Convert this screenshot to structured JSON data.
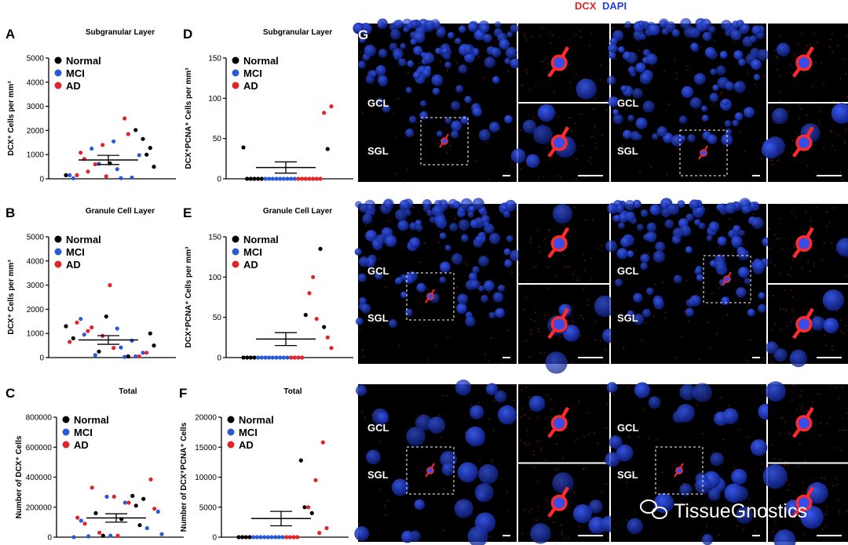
{
  "header": {
    "dcx": "DCX",
    "dapi": "DAPI",
    "dcx_color": "#e0262a",
    "dapi_color": "#2440d8"
  },
  "panel_G_label": "G",
  "region_labels": {
    "gcl": "GCL",
    "sgl": "SGL"
  },
  "watermark": {
    "text": "TissueGnostics",
    "icon": "wechat-icon"
  },
  "legend": [
    {
      "name": "Normal",
      "color": "#000000"
    },
    {
      "name": "MCI",
      "color": "#2a5bd7"
    },
    {
      "name": "AD",
      "color": "#e0262a"
    }
  ],
  "chart_data": [
    {
      "panel": "A",
      "type": "scatter",
      "title": "Subgranular  Layer",
      "ylabel": "DCX⁺ Cells per mm³",
      "ylim": [
        0,
        5000
      ],
      "yticks": [
        "0",
        "1000",
        "2000",
        "3000",
        "4000",
        "5000"
      ],
      "mean": 780,
      "sem": 190,
      "series": [
        {
          "name": "Normal",
          "values": [
            2020,
            1650,
            1280,
            1000,
            640,
            500,
            150
          ]
        },
        {
          "name": "MCI",
          "values": [
            1550,
            1250,
            980,
            620,
            400,
            150,
            50,
            30,
            20
          ]
        },
        {
          "name": "AD",
          "values": [
            2500,
            1850,
            1400,
            1080,
            820,
            600,
            300,
            150,
            100
          ]
        }
      ]
    },
    {
      "panel": "B",
      "type": "scatter",
      "title": "Granule Cell Layer",
      "ylabel": "DCX⁺ Cells per mm³",
      "ylim": [
        0,
        5000
      ],
      "yticks": [
        "0",
        "1000",
        "2000",
        "3000",
        "4000",
        "5000"
      ],
      "mean": 730,
      "sem": 180,
      "series": [
        {
          "name": "Normal",
          "values": [
            1700,
            1300,
            1000,
            800,
            500,
            250,
            50
          ]
        },
        {
          "name": "MCI",
          "values": [
            1600,
            1200,
            950,
            700,
            420,
            200,
            100,
            50,
            30
          ]
        },
        {
          "name": "AD",
          "values": [
            3000,
            1450,
            1250,
            1100,
            900,
            650,
            400,
            200,
            50
          ]
        }
      ]
    },
    {
      "panel": "C",
      "type": "scatter",
      "title": "Total",
      "ylabel": "Number of DCX⁺ Cells",
      "ylim": [
        0,
        800000
      ],
      "yticks": [
        "0",
        "200000",
        "400000",
        "600000",
        "800000"
      ],
      "mean": 128000,
      "sem": 28000,
      "series": [
        {
          "name": "Normal",
          "values": [
            275000,
            255000,
            210000,
            160000,
            120000,
            80000,
            10000
          ]
        },
        {
          "name": "MCI",
          "values": [
            270000,
            230000,
            170000,
            110000,
            60000,
            20000,
            10000,
            5000,
            0
          ]
        },
        {
          "name": "AD",
          "values": [
            385000,
            330000,
            270000,
            230000,
            190000,
            130000,
            90000,
            30000,
            10000
          ]
        }
      ]
    },
    {
      "panel": "D",
      "type": "scatter",
      "title": "Subgranular Layer",
      "ylabel": "DCX⁺PCNA⁺ Cells per mm³",
      "ylim": [
        0,
        150
      ],
      "yticks": [
        "0",
        "50",
        "100",
        "150"
      ],
      "mean": 14,
      "sem": 7,
      "series": [
        {
          "name": "Normal",
          "values": [
            39,
            37,
            0,
            0,
            0,
            0,
            0
          ]
        },
        {
          "name": "MCI",
          "values": [
            0,
            0,
            0,
            0,
            0,
            0,
            0,
            0,
            0
          ]
        },
        {
          "name": "AD",
          "values": [
            90,
            82,
            0,
            0,
            0,
            0,
            0,
            0,
            0
          ]
        }
      ]
    },
    {
      "panel": "E",
      "type": "scatter",
      "title": "Granule Cell Layer",
      "ylabel": "DCX⁺PCNA⁺ Cells per mm³",
      "ylim": [
        0,
        150
      ],
      "yticks": [
        "0",
        "50",
        "100",
        "150"
      ],
      "mean": 23,
      "sem": 8,
      "series": [
        {
          "name": "Normal",
          "values": [
            135,
            53,
            38,
            0,
            0,
            0,
            0
          ]
        },
        {
          "name": "MCI",
          "values": [
            0,
            0,
            0,
            0,
            0,
            0,
            0,
            0,
            0
          ]
        },
        {
          "name": "AD",
          "values": [
            100,
            80,
            48,
            25,
            12,
            0,
            0,
            0,
            0
          ]
        }
      ]
    },
    {
      "panel": "F",
      "type": "scatter",
      "title": "Total",
      "ylabel": "Number of DCX⁺PCNA⁺ Cells",
      "ylim": [
        0,
        20000
      ],
      "yticks": [
        "0",
        "5000",
        "10000",
        "15000",
        "20000"
      ],
      "mean": 3100,
      "sem": 1200,
      "series": [
        {
          "name": "Normal",
          "values": [
            12800,
            5000,
            4000,
            0,
            0,
            0,
            0
          ]
        },
        {
          "name": "MCI",
          "values": [
            0,
            0,
            0,
            0,
            0,
            0,
            0,
            0,
            0
          ]
        },
        {
          "name": "AD",
          "values": [
            15800,
            9500,
            5000,
            1500,
            700,
            0,
            0,
            0,
            0
          ]
        }
      ]
    }
  ]
}
